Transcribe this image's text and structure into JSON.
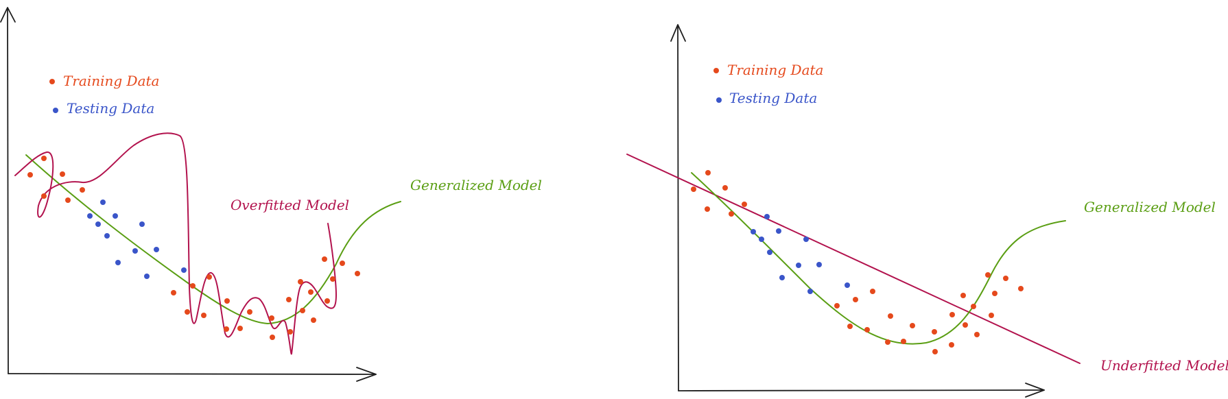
{
  "colors": {
    "training": "#e5491c",
    "testing": "#3a55c9",
    "generalized": "#5a9e13",
    "overfitted": "#b2124d",
    "underfitted": "#b2124d",
    "axis": "#1e1e1e"
  },
  "icons": {
    "legend_marker": "filled-circle"
  },
  "left_panel": {
    "legend": {
      "training": "Training Data",
      "testing": "Testing Data"
    },
    "generalized_label": "Generalized Model",
    "overfitted_label": "Overfitted Model"
  },
  "right_panel": {
    "legend": {
      "training": "Training Data",
      "testing": "Testing Data"
    },
    "generalized_label": "Generalized Model",
    "underfitted_label": "Underfitted Model"
  }
}
